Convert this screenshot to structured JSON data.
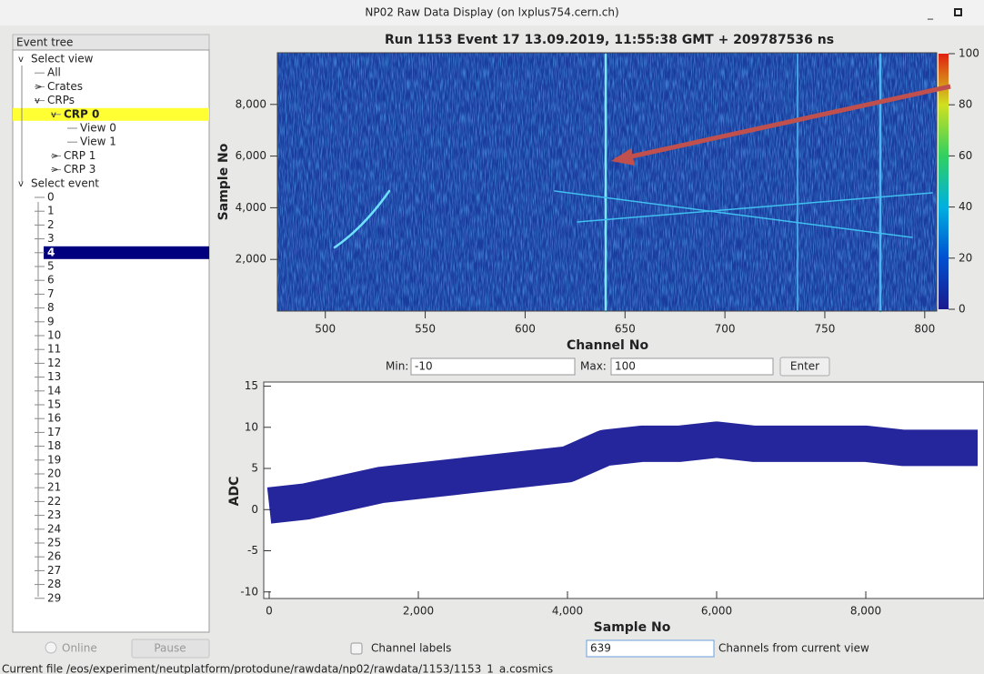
{
  "window": {
    "title": "NP02 Raw Data Display (on lxplus754.cern.ch)"
  },
  "tree": {
    "header": "Event tree",
    "nodes": [
      "Select view",
      "All",
      "Crates",
      "CRPs",
      "CRP 0",
      "View 0",
      "View 1",
      "CRP 1",
      "CRP 3",
      "Select event",
      "0",
      "1",
      "2",
      "3",
      "4",
      "5",
      "6",
      "7",
      "8",
      "9",
      "10",
      "11",
      "12",
      "13",
      "14",
      "15",
      "16",
      "17",
      "18",
      "19",
      "20",
      "21",
      "22",
      "23",
      "24",
      "25",
      "26",
      "27",
      "28",
      "29"
    ]
  },
  "chart_data": [
    {
      "type": "heatmap",
      "title": "Run 1153 Event 17 13.09.2019, 11:55:38 GMT + 209787536 ns",
      "x_label": "Channel No",
      "y_label": "Sample No",
      "xlim": [
        476,
        806
      ],
      "xticks": [
        500,
        550,
        600,
        650,
        700,
        750,
        800
      ],
      "ylim": [
        0,
        10000
      ],
      "yticks": [
        {
          "value": 2000,
          "label": "2,000"
        },
        {
          "value": 4000,
          "label": "4,000"
        },
        {
          "value": 6000,
          "label": "6,000"
        },
        {
          "value": 8000,
          "label": "8,000"
        }
      ],
      "colorbar": {
        "lim": [
          0,
          100
        ],
        "ticks": [
          0,
          20,
          40,
          60,
          80,
          100
        ]
      }
    },
    {
      "type": "line",
      "x_label": "Sample No",
      "y_label": "ADC",
      "xlim": [
        -73,
        9585
      ],
      "xticks": [
        0,
        {
          "value": 2000,
          "label": "2,000"
        },
        {
          "value": 4000,
          "label": "4,000"
        },
        {
          "value": 6000,
          "label": "6,000"
        },
        {
          "value": 8000,
          "label": "8,000"
        }
      ],
      "ylim": [
        -10.8,
        15.5
      ],
      "yticks": [
        -10,
        -5,
        0,
        5,
        10,
        15
      ],
      "x": [
        0,
        500,
        1000,
        1500,
        2000,
        2500,
        3000,
        3500,
        4000,
        4500,
        5000,
        5500,
        6000,
        6500,
        7000,
        7500,
        8000,
        8500,
        9000,
        9500
      ],
      "series": [
        {
          "color": "#00008b",
          "values": [
            0.5,
            1,
            2,
            3,
            3.5,
            4,
            4.5,
            5,
            5.5,
            7.5,
            8,
            8,
            8.5,
            8,
            8,
            8,
            8,
            7.5,
            7.5,
            7.5
          ]
        }
      ]
    }
  ],
  "controls": {
    "min_label": "Min:",
    "min_value": "-10",
    "max_label": "Max:",
    "max_value": "100",
    "enter": "Enter",
    "online": "Online",
    "pause": "Pause",
    "channel_labels": "Channel labels",
    "channel_input": "639",
    "channels_from": "Channels from current view"
  },
  "status": "Current file /eos/experiment/neutplatform/protodune/rawdata/np02/rawdata/1153/1153_1_a.cosmics"
}
